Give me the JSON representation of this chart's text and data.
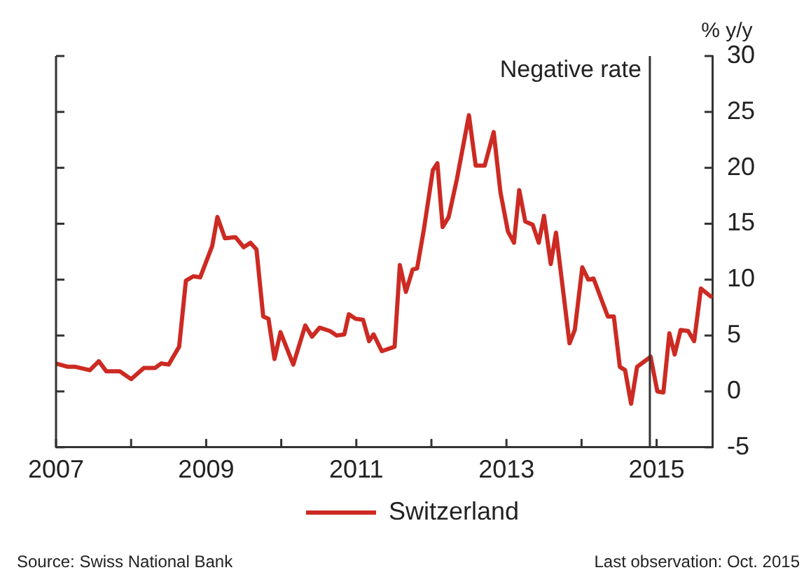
{
  "chart_data": {
    "type": "line",
    "ylabel": "% y/y",
    "x": [
      2007.0,
      2007.16,
      2007.26,
      2007.45,
      2007.57,
      2007.67,
      2007.85,
      2008.0,
      2008.17,
      2008.32,
      2008.4,
      2008.5,
      2008.64,
      2008.73,
      2008.83,
      2008.92,
      2009.08,
      2009.15,
      2009.25,
      2009.39,
      2009.5,
      2009.59,
      2009.67,
      2009.76,
      2009.83,
      2009.91,
      2009.99,
      2010.16,
      2010.32,
      2010.41,
      2010.51,
      2010.65,
      2010.74,
      2010.84,
      2010.9,
      2010.99,
      2011.09,
      2011.17,
      2011.23,
      2011.34,
      2011.51,
      2011.58,
      2011.66,
      2011.75,
      2011.81,
      2011.9,
      2012.02,
      2012.08,
      2012.15,
      2012.23,
      2012.34,
      2012.5,
      2012.59,
      2012.71,
      2012.83,
      2012.92,
      2013.02,
      2013.1,
      2013.17,
      2013.25,
      2013.35,
      2013.43,
      2013.5,
      2013.59,
      2013.66,
      2013.84,
      2013.91,
      2014.01,
      2014.09,
      2014.16,
      2014.35,
      2014.43,
      2014.51,
      2014.58,
      2014.66,
      2014.74,
      2014.92,
      2015.01,
      2015.09,
      2015.17,
      2015.24,
      2015.32,
      2015.42,
      2015.5,
      2015.59,
      2015.72
    ],
    "series": [
      {
        "name": "Switzerland",
        "color": "#cc2a22",
        "values": [
          2.5,
          2.2,
          2.2,
          1.9,
          2.7,
          1.8,
          1.8,
          1.1,
          2.1,
          2.1,
          2.5,
          2.4,
          4.0,
          9.9,
          10.3,
          10.2,
          13.0,
          15.6,
          13.7,
          13.8,
          12.9,
          13.3,
          12.7,
          6.7,
          6.5,
          2.9,
          5.3,
          2.4,
          5.9,
          4.9,
          5.7,
          5.4,
          5.0,
          5.1,
          6.9,
          6.5,
          6.4,
          4.5,
          5.1,
          3.6,
          4.0,
          11.3,
          8.9,
          10.9,
          11.0,
          14.5,
          19.8,
          20.4,
          14.7,
          15.6,
          19.0,
          24.7,
          20.2,
          20.2,
          23.2,
          17.8,
          14.3,
          13.3,
          18.0,
          15.2,
          14.9,
          13.3,
          15.7,
          11.4,
          14.2,
          4.3,
          5.5,
          11.1,
          10.0,
          10.1,
          6.7,
          6.7,
          2.2,
          1.9,
          -1.1,
          2.2,
          3.1,
          0,
          -0.1,
          5.2,
          3.3,
          5.5,
          5.4,
          4.5,
          9.2,
          8.5
        ]
      }
    ],
    "xlim": [
      2007,
      2015.75
    ],
    "xticks": [
      2007,
      {
        "value": 2008,
        "label": null
      },
      2009,
      {
        "value": 2010,
        "label": null
      },
      2011,
      {
        "value": 2012,
        "label": null
      },
      2013,
      {
        "value": 2014,
        "label": null
      },
      2015
    ],
    "ylim": [
      -5,
      30
    ],
    "yticks": [
      -5,
      0,
      5,
      10,
      15,
      20,
      25,
      30
    ],
    "ref_lines": [
      {
        "axis": "x",
        "value": 2014.91,
        "label": "Negative rate",
        "color": "#333333"
      }
    ],
    "annotations": [
      "Source: Swiss National Bank",
      "Last observation: Oct. 2015"
    ],
    "legend": "bottom",
    "grid": false,
    "marker": "none",
    "line_style": "solid"
  }
}
